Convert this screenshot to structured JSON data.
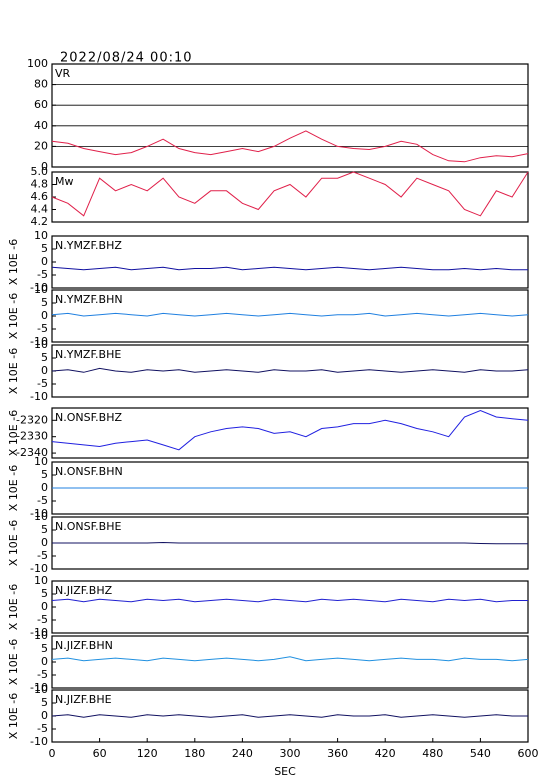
{
  "chart_data": [
    {
      "type": "line",
      "title": "2022/08/24 00:10",
      "label": "VR",
      "color": "#e0204a",
      "grid": true,
      "x": [
        0,
        20,
        40,
        60,
        80,
        100,
        120,
        140,
        160,
        180,
        200,
        220,
        240,
        260,
        280,
        300,
        320,
        340,
        360,
        380,
        400,
        420,
        440,
        460,
        480,
        500,
        520,
        540,
        560,
        580,
        600
      ],
      "values": [
        25,
        23,
        18,
        15,
        12,
        14,
        20,
        27,
        18,
        14,
        12,
        15,
        18,
        15,
        20,
        28,
        35,
        27,
        20,
        18,
        17,
        20,
        25,
        22,
        12,
        6,
        5,
        9,
        11,
        10,
        13
      ],
      "xlim": [
        0,
        600
      ],
      "ylim": [
        0,
        100
      ],
      "yticks": [
        0,
        20,
        40,
        60,
        80,
        100
      ]
    },
    {
      "type": "line",
      "label": "Mw",
      "color": "#e0204a",
      "x": [
        0,
        20,
        40,
        60,
        80,
        100,
        120,
        140,
        160,
        180,
        200,
        220,
        240,
        260,
        280,
        300,
        320,
        340,
        360,
        380,
        400,
        420,
        440,
        460,
        480,
        500,
        520,
        540,
        560,
        580,
        600
      ],
      "values": [
        4.6,
        4.5,
        4.3,
        4.9,
        4.7,
        4.8,
        4.7,
        4.9,
        4.6,
        4.5,
        4.7,
        4.7,
        4.5,
        4.4,
        4.7,
        4.8,
        4.6,
        4.9,
        4.9,
        5.0,
        4.9,
        4.8,
        4.6,
        4.9,
        4.8,
        4.7,
        4.4,
        4.3,
        4.7,
        4.6,
        5.0
      ],
      "xlim": [
        0,
        600
      ],
      "ylim": [
        4.2,
        5.0
      ],
      "yticks": [
        4.2,
        4.4,
        4.6,
        4.8,
        {
          "value": 5,
          "label": "5.0"
        }
      ]
    },
    {
      "type": "line",
      "label": "N.YMZF.BHZ",
      "ylabel": "X 10E -6",
      "color": "#1010a0",
      "x": [
        0,
        20,
        40,
        60,
        80,
        100,
        120,
        140,
        160,
        180,
        200,
        220,
        240,
        260,
        280,
        300,
        320,
        340,
        360,
        380,
        400,
        420,
        440,
        460,
        480,
        500,
        520,
        540,
        560,
        580,
        600
      ],
      "values": [
        -2,
        -2.5,
        -3,
        -2.5,
        -2,
        -3,
        -2.5,
        -2,
        -3,
        -2.5,
        -2.5,
        -2,
        -3,
        -2.5,
        -2,
        -2.5,
        -3,
        -2.5,
        -2,
        -2.5,
        -3,
        -2.5,
        -2,
        -2.5,
        -3,
        -3,
        -2.5,
        -3,
        -2.5,
        -3,
        -3
      ],
      "xlim": [
        0,
        600
      ],
      "ylim": [
        -10,
        10
      ],
      "yticks": [
        -10,
        -5,
        0,
        5,
        10
      ]
    },
    {
      "type": "line",
      "label": "N.YMZF.BHN",
      "ylabel": "X 10E -6",
      "color": "#2080e0",
      "x": [
        0,
        20,
        40,
        60,
        80,
        100,
        120,
        140,
        160,
        180,
        200,
        220,
        240,
        260,
        280,
        300,
        320,
        340,
        360,
        380,
        400,
        420,
        440,
        460,
        480,
        500,
        520,
        540,
        560,
        580,
        600
      ],
      "values": [
        0.5,
        1,
        0,
        0.5,
        1,
        0.5,
        0,
        1,
        0.5,
        0,
        0.5,
        1,
        0.5,
        0,
        0.5,
        1,
        0.5,
        0,
        0.5,
        0.5,
        1,
        0,
        0.5,
        1,
        0.5,
        0,
        0.5,
        1,
        0.5,
        0,
        0.5
      ],
      "xlim": [
        0,
        600
      ],
      "ylim": [
        -10,
        10
      ],
      "yticks": [
        -10,
        -5,
        0,
        5,
        10
      ]
    },
    {
      "type": "line",
      "label": "N.YMZF.BHE",
      "ylabel": "X 10E -6",
      "color": "#101060",
      "x": [
        0,
        20,
        40,
        60,
        80,
        100,
        120,
        140,
        160,
        180,
        200,
        220,
        240,
        260,
        280,
        300,
        320,
        340,
        360,
        380,
        400,
        420,
        440,
        460,
        480,
        500,
        520,
        540,
        560,
        580,
        600
      ],
      "values": [
        0,
        0.5,
        -0.5,
        1,
        0,
        -0.5,
        0.5,
        0,
        0.5,
        -0.5,
        0,
        0.5,
        0,
        -0.5,
        0.5,
        0,
        0,
        0.5,
        -0.5,
        0,
        0.5,
        0,
        -0.5,
        0,
        0.5,
        0,
        -0.5,
        0.5,
        0,
        0,
        0.5
      ],
      "xlim": [
        0,
        600
      ],
      "ylim": [
        -10,
        10
      ],
      "yticks": [
        -10,
        -5,
        0,
        5,
        10
      ]
    },
    {
      "type": "line",
      "label": "N.ONSF.BHZ",
      "ylabel": "X 10E -6",
      "color": "#2020e0",
      "x": [
        0,
        20,
        40,
        60,
        80,
        100,
        120,
        140,
        160,
        180,
        200,
        220,
        240,
        260,
        280,
        300,
        320,
        340,
        360,
        380,
        400,
        420,
        440,
        460,
        480,
        500,
        520,
        540,
        560,
        580,
        600
      ],
      "values": [
        -2333,
        -2334,
        -2335,
        -2336,
        -2334,
        -2333,
        -2332,
        -2335,
        -2338,
        -2330,
        -2327,
        -2325,
        -2324,
        -2325,
        -2328,
        -2327,
        -2330,
        -2325,
        -2324,
        -2322,
        -2322,
        -2320,
        -2322,
        -2325,
        -2327,
        -2330,
        -2318,
        -2314,
        -2318,
        -2319,
        -2320
      ],
      "xlim": [
        0,
        600
      ],
      "ylim": [
        -2343,
        -2312.5
      ],
      "yticks": [
        -2340,
        -2330,
        -2320
      ]
    },
    {
      "type": "line",
      "label": "N.ONSF.BHN",
      "ylabel": "X 10E -6",
      "color": "#2080e0",
      "x": [
        0,
        20,
        40,
        60,
        80,
        100,
        120,
        140,
        160,
        180,
        200,
        220,
        240,
        260,
        280,
        300,
        320,
        340,
        360,
        380,
        400,
        420,
        440,
        460,
        480,
        500,
        520,
        540,
        560,
        580,
        600
      ],
      "values": [
        0,
        0,
        0,
        0,
        0,
        0,
        0,
        0,
        0,
        0,
        0,
        0,
        0,
        0,
        0,
        0,
        0,
        0,
        0,
        0,
        0,
        0,
        0,
        0,
        0,
        0,
        0,
        0,
        0,
        0,
        0
      ],
      "xlim": [
        0,
        600
      ],
      "ylim": [
        -10,
        10
      ],
      "yticks": [
        -10,
        -5,
        0,
        5,
        10
      ]
    },
    {
      "type": "line",
      "label": "N.ONSF.BHE",
      "ylabel": "X 10E -6",
      "color": "#101060",
      "x": [
        0,
        20,
        40,
        60,
        80,
        100,
        120,
        140,
        160,
        180,
        200,
        220,
        240,
        260,
        280,
        300,
        320,
        340,
        360,
        380,
        400,
        420,
        440,
        460,
        480,
        500,
        520,
        540,
        560,
        580,
        600
      ],
      "values": [
        0,
        0,
        0,
        0,
        0,
        0,
        0,
        0.2,
        0,
        0,
        0,
        0,
        0,
        0,
        0,
        0,
        0,
        0,
        0,
        0,
        0,
        0,
        0,
        0,
        0,
        0,
        0,
        -0.2,
        -0.3,
        -0.3,
        -0.3
      ],
      "xlim": [
        0,
        600
      ],
      "ylim": [
        -10,
        10
      ],
      "yticks": [
        -10,
        -5,
        0,
        5,
        10
      ]
    },
    {
      "type": "line",
      "label": "N.JIZF.BHZ",
      "ylabel": "X 10E -6",
      "color": "#2020d0",
      "x": [
        0,
        20,
        40,
        60,
        80,
        100,
        120,
        140,
        160,
        180,
        200,
        220,
        240,
        260,
        280,
        300,
        320,
        340,
        360,
        380,
        400,
        420,
        440,
        460,
        480,
        500,
        520,
        540,
        560,
        580,
        600
      ],
      "values": [
        2.5,
        3,
        2,
        3,
        2.5,
        2,
        3,
        2.5,
        3,
        2,
        2.5,
        3,
        2.5,
        2,
        3,
        2.5,
        2,
        3,
        2.5,
        3,
        2.5,
        2,
        3,
        2.5,
        2,
        3,
        2.5,
        3,
        2,
        2.5,
        2.5
      ],
      "xlim": [
        0,
        600
      ],
      "ylim": [
        -10,
        10
      ],
      "yticks": [
        -10,
        -5,
        0,
        5,
        10
      ]
    },
    {
      "type": "line",
      "label": "N.JIZF.BHN",
      "ylabel": "X 10E -6",
      "color": "#2090e0",
      "x": [
        0,
        20,
        40,
        60,
        80,
        100,
        120,
        140,
        160,
        180,
        200,
        220,
        240,
        260,
        280,
        300,
        320,
        340,
        360,
        380,
        400,
        420,
        440,
        460,
        480,
        500,
        520,
        540,
        560,
        580,
        600
      ],
      "values": [
        1,
        1.5,
        0.5,
        1,
        1.5,
        1,
        0.5,
        1.5,
        1,
        0.5,
        1,
        1.5,
        1,
        0.5,
        1,
        2,
        0.5,
        1,
        1.5,
        1,
        0.5,
        1,
        1.5,
        1,
        1,
        0.5,
        1.5,
        1,
        1,
        0.5,
        1
      ],
      "xlim": [
        0,
        600
      ],
      "ylim": [
        -10,
        10
      ],
      "yticks": [
        -10,
        -5,
        0,
        5,
        10
      ]
    },
    {
      "type": "line",
      "label": "N.JIZF.BHE",
      "ylabel": "X 10E -6",
      "color": "#101060",
      "xlabel": "SEC",
      "x": [
        0,
        20,
        40,
        60,
        80,
        100,
        120,
        140,
        160,
        180,
        200,
        220,
        240,
        260,
        280,
        300,
        320,
        340,
        360,
        380,
        400,
        420,
        440,
        460,
        480,
        500,
        520,
        540,
        560,
        580,
        600
      ],
      "values": [
        0,
        0.5,
        -0.5,
        0.5,
        0,
        -0.5,
        0.5,
        0,
        0.5,
        0,
        -0.5,
        0,
        0.5,
        -0.5,
        0,
        0.5,
        0,
        -0.5,
        0.5,
        0,
        0,
        0.5,
        -0.5,
        0,
        0.5,
        0,
        -0.5,
        0,
        0.5,
        0,
        0
      ],
      "xlim": [
        0,
        600
      ],
      "ylim": [
        -10,
        10
      ],
      "yticks": [
        -10,
        -5,
        0,
        5,
        10
      ],
      "xticks": [
        0,
        60,
        120,
        180,
        240,
        300,
        360,
        420,
        480,
        540,
        600
      ]
    }
  ]
}
